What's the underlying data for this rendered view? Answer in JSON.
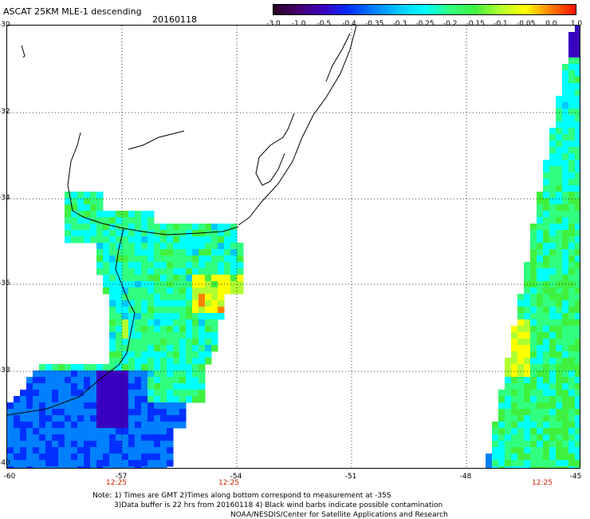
{
  "header": {
    "title": "ASCAT 25KM MLE-1 descending",
    "date": "20160118"
  },
  "colorbar": {
    "tick_labels": [
      "-3.0",
      "-1.0",
      "-0.5",
      "-0.4",
      "-0.35",
      "-0.3",
      "-0.25",
      "-0.2",
      "-0.15",
      "-0.1",
      "-0.05",
      "0.0",
      "1.0"
    ],
    "colors": [
      "#2a0020",
      "#440070",
      "#3a00c0",
      "#0030ff",
      "#0080ff",
      "#00c8ff",
      "#00ffff",
      "#30ff80",
      "#40f040",
      "#b0ff30",
      "#ffff00",
      "#ff8000",
      "#ff1000"
    ]
  },
  "map": {
    "lat_labels": [
      "-30",
      "-32",
      "-34",
      "-36",
      "-38",
      "-40"
    ],
    "lon_labels": [
      "-60",
      "-57",
      "-54",
      "-51",
      "-48",
      "-45"
    ],
    "time_labels": [
      "12:25",
      "12:25",
      "12:25"
    ],
    "time_color": "#cc2200"
  },
  "notes": [
    "Note: 1) Times are GMT 2)Times along bottom correspond to measurement at -35S",
    "3)Data buffer is 22 hrs from 20160118 4) Black wind barbs indicate possible contamination",
    "NOAA/NESDIS/Center for Satellite Applications and Research"
  ]
}
